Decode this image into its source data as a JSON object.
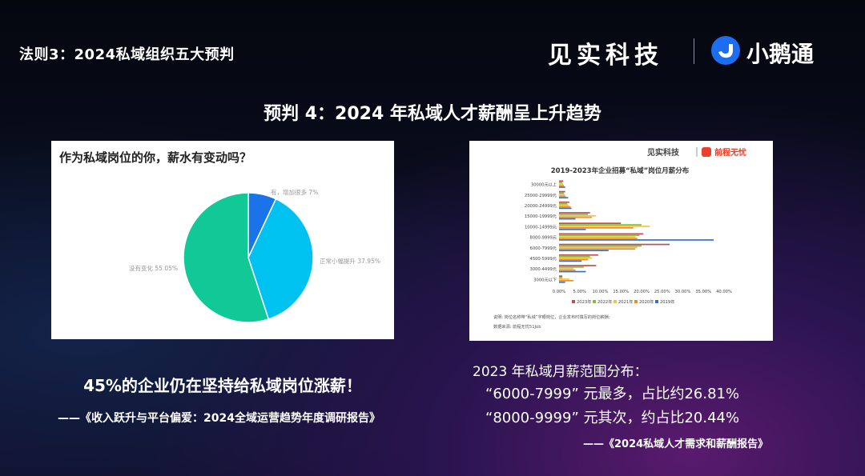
{
  "header": {
    "section_title": "法则3：2024私域组织五大预判",
    "brand_name": "见实科技",
    "partner_name": "小鹅通"
  },
  "headline": "预判 4：2024 年私域人才薪酬呈上升趋势",
  "left_card": {
    "question": "作为私域岗位的你，薪水有变动吗？",
    "chart_data": {
      "type": "pie",
      "title": "作为私域岗位的你，薪水有变动吗？",
      "slices": [
        {
          "label": "有，增加很多 7%",
          "value": 7.0,
          "color": "#1a73e8"
        },
        {
          "label": "正常小幅提升 37.95%",
          "value": 37.95,
          "color": "#00c2f0"
        },
        {
          "label": "没有变化 55.05%",
          "value": 55.05,
          "color": "#10c997"
        }
      ]
    }
  },
  "right_card": {
    "brand_left": "见实科技",
    "brand_right": "前程无忧",
    "chart_data": {
      "type": "bar",
      "orientation": "horizontal",
      "title": "2019-2023年企业招募“私域”岗位月薪分布",
      "categories": [
        "30000元以上",
        "25000-29999元",
        "20000-24999元",
        "15000-19999元",
        "10000-14999元",
        "8000-9999元",
        "6000-7999元",
        "4500-5999元",
        "3000-4499元",
        "3000元以下"
      ],
      "xlim": [
        0,
        40
      ],
      "xticks": [
        "0.00%",
        "5.00%",
        "10.00%",
        "15.00%",
        "20.00%",
        "25.00%",
        "30.00%",
        "35.00%",
        "40.00%"
      ],
      "series": [
        {
          "name": "2023年",
          "color": "#c0504d",
          "values": [
            1.0,
            1.5,
            2.5,
            7.5,
            15.0,
            20.44,
            26.81,
            9.5,
            9.0,
            0.8
          ]
        },
        {
          "name": "2022年",
          "color": "#7ac143",
          "values": [
            0.8,
            1.2,
            2.0,
            7.0,
            20.0,
            19.5,
            20.0,
            7.5,
            6.0,
            0.8
          ]
        },
        {
          "name": "2021年",
          "color": "#f5c242",
          "values": [
            1.0,
            1.4,
            2.3,
            9.0,
            22.0,
            18.5,
            19.0,
            8.0,
            3.5,
            2.5
          ]
        },
        {
          "name": "2020年",
          "color": "#f28c28",
          "values": [
            1.2,
            1.6,
            2.8,
            8.0,
            18.0,
            19.0,
            18.5,
            7.0,
            4.0,
            3.5
          ]
        },
        {
          "name": "2019年",
          "color": "#2e6fd8",
          "values": [
            1.5,
            2.2,
            3.0,
            4.0,
            6.5,
            37.5,
            12.0,
            5.5,
            6.5,
            1.5
          ]
        }
      ],
      "notes": [
        "说明: 岗位名称带“私域”字眼岗位，企业发布时填写的岗位薪酬;",
        "数据来源: 前程无忧51Job"
      ]
    }
  },
  "captions": {
    "left_main": "45%的企业仍在坚持给私域岗位涨薪！",
    "left_source": "——《收入跃升与平台偏爱：2024全域运营趋势年度调研报告》",
    "right_line1": "2023 年私域月薪范围分布：",
    "right_line2": "“6000-7999” 元最多，占比约26.81%",
    "right_line3": "“8000-9999” 元其次，约占比20.44%",
    "right_source": "——《2024私域人才需求和薪酬报告》"
  }
}
